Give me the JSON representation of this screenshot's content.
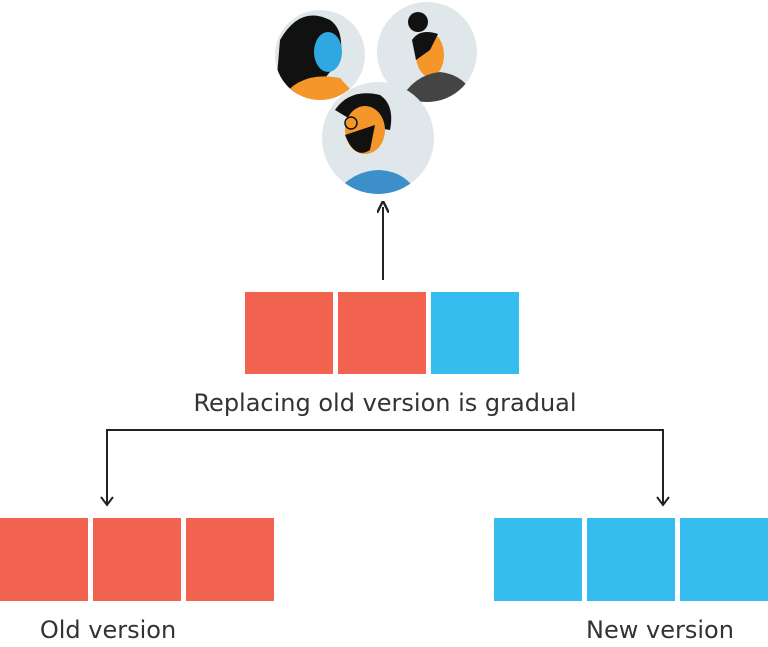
{
  "diagram": {
    "middle_label": "Replacing old version is gradual",
    "left_label": "Old version",
    "right_label": "New version"
  }
}
